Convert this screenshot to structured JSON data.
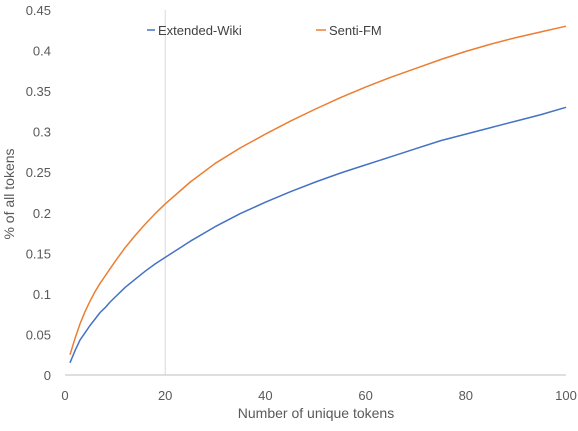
{
  "chart_data": {
    "type": "line",
    "title": "",
    "xlabel": "Number of unique tokens",
    "ylabel": "% of all tokens",
    "xlim": [
      0,
      100
    ],
    "ylim": [
      0,
      0.45
    ],
    "x_ticks": [
      0,
      20,
      40,
      60,
      80,
      100
    ],
    "y_ticks": [
      0,
      0.05,
      0.1,
      0.15,
      0.2,
      0.25,
      0.3,
      0.35,
      0.4,
      0.45
    ],
    "x_tick_labels": [
      "0",
      "20",
      "40",
      "60",
      "80",
      "100"
    ],
    "y_tick_labels": [
      "0",
      "0.05",
      "0.1",
      "0.15",
      "0.2",
      "0.25",
      "0.3",
      "0.35",
      "0.4",
      "0.45"
    ],
    "grid": false,
    "reference_line_x": 20,
    "legend_position": "top",
    "series": [
      {
        "name": "Extended-Wiki",
        "color": "#4472C4",
        "x": [
          1,
          2,
          3,
          4,
          5,
          6,
          7,
          8,
          9,
          10,
          12,
          14,
          16,
          18,
          20,
          25,
          30,
          35,
          40,
          45,
          50,
          55,
          60,
          65,
          70,
          75,
          80,
          85,
          90,
          95,
          100
        ],
        "values": [
          0.015,
          0.03,
          0.043,
          0.052,
          0.061,
          0.069,
          0.077,
          0.083,
          0.09,
          0.096,
          0.108,
          0.118,
          0.128,
          0.137,
          0.145,
          0.165,
          0.183,
          0.199,
          0.213,
          0.226,
          0.238,
          0.249,
          0.259,
          0.269,
          0.279,
          0.289,
          0.297,
          0.305,
          0.313,
          0.321,
          0.33
        ]
      },
      {
        "name": "Senti-FM",
        "color": "#ED7D31",
        "x": [
          1,
          2,
          3,
          4,
          5,
          6,
          7,
          8,
          9,
          10,
          12,
          14,
          16,
          18,
          20,
          25,
          30,
          35,
          40,
          45,
          50,
          55,
          60,
          65,
          70,
          75,
          80,
          85,
          90,
          95,
          100
        ],
        "values": [
          0.025,
          0.045,
          0.063,
          0.078,
          0.091,
          0.103,
          0.113,
          0.122,
          0.131,
          0.14,
          0.157,
          0.172,
          0.186,
          0.199,
          0.211,
          0.238,
          0.261,
          0.28,
          0.297,
          0.313,
          0.328,
          0.342,
          0.355,
          0.367,
          0.378,
          0.389,
          0.399,
          0.408,
          0.416,
          0.423,
          0.43
        ]
      }
    ]
  }
}
